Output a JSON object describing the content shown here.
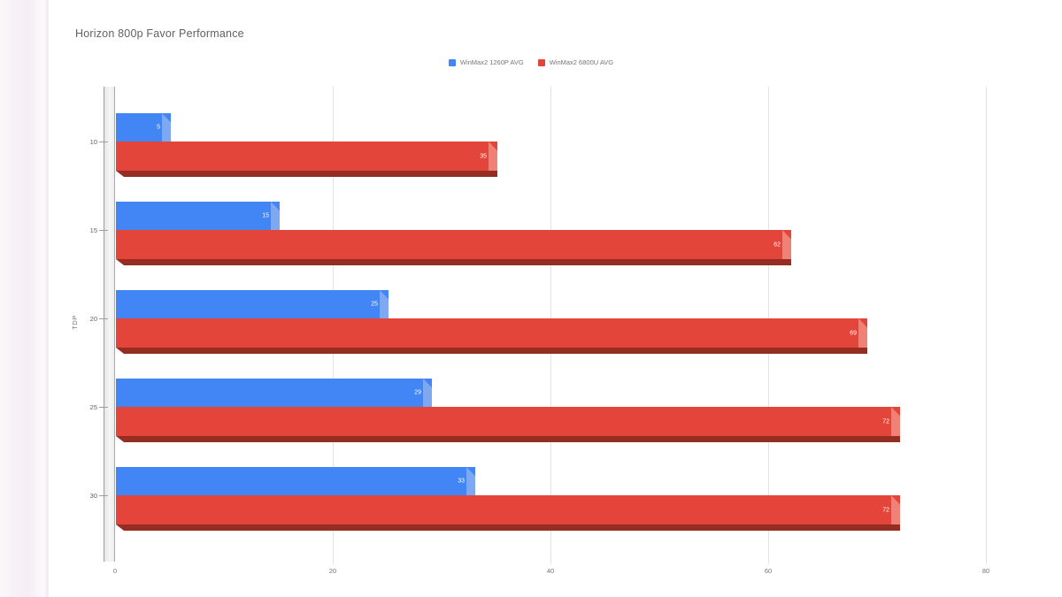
{
  "page": {
    "title": "Horizon 800p Favor Performance"
  },
  "chart_data": {
    "type": "bar",
    "orientation": "horizontal",
    "title": "Horizon 800p Favor Performance",
    "ylabel": "TDP",
    "xlabel": "",
    "categories": [
      "10",
      "15",
      "20",
      "25",
      "30"
    ],
    "series": [
      {
        "name": "WinMax2 1260P AVG",
        "color": "#4285f4",
        "cap_color": "#7fa8f2",
        "shadow_color": "#2a56c6",
        "values": [
          5,
          15,
          25,
          29,
          33
        ]
      },
      {
        "name": "WinMax2 6800U AVG",
        "color": "#e3453a",
        "cap_color": "#ef8177",
        "shadow_color": "#962d22",
        "values": [
          35,
          62,
          69,
          72,
          72
        ]
      }
    ],
    "xlim": [
      0,
      80
    ],
    "x_ticks": [
      0,
      20,
      40,
      60,
      80
    ],
    "grid": "vertical",
    "legend_position": "top",
    "value_labels": "inside-end",
    "text_colors": {
      "title": "#616161",
      "axis": "#757575",
      "value": "#ffffff"
    }
  }
}
